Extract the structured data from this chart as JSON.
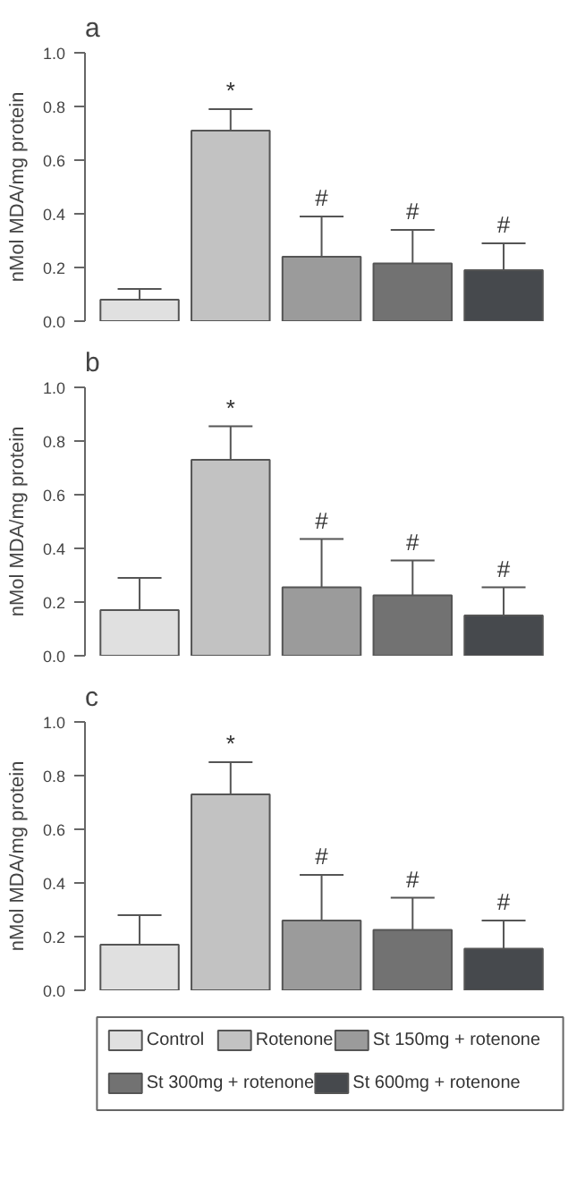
{
  "chart_data": [
    {
      "type": "bar",
      "title": "a",
      "ylabel": "nMol MDA/mg protein",
      "categories": [
        null
      ],
      "ylim": [
        0,
        1.0
      ],
      "yticks": [
        {
          "value": 0,
          "label": "0.0"
        },
        {
          "value": 0.2,
          "label": "0.2"
        },
        {
          "value": 0.4,
          "label": "0.4"
        },
        {
          "value": 0.6,
          "label": "0.6"
        },
        {
          "value": 0.8,
          "label": "0.8"
        },
        {
          "value": 1.0,
          "label": "1.0"
        }
      ],
      "grid": false,
      "legend": false,
      "series": [
        {
          "color": "#e0e0e0",
          "values": [
            0.08
          ],
          "errors": [
            [
              0.08,
              0.12
            ]
          ],
          "value_labels": [
            null
          ]
        },
        {
          "color": "#c2c2c2",
          "values": [
            0.71
          ],
          "errors": [
            [
              0.71,
              0.79
            ]
          ],
          "value_labels": [
            "*"
          ]
        },
        {
          "color": "#9b9b9b",
          "values": [
            0.24
          ],
          "errors": [
            [
              0.24,
              0.39
            ]
          ],
          "value_labels": [
            "#"
          ]
        },
        {
          "color": "#727272",
          "values": [
            0.215
          ],
          "errors": [
            [
              0.215,
              0.34
            ]
          ],
          "value_labels": [
            "#"
          ]
        },
        {
          "color": "#46494d",
          "values": [
            0.19
          ],
          "errors": [
            [
              0.19,
              0.29
            ]
          ],
          "value_labels": [
            "#"
          ]
        }
      ]
    },
    {
      "type": "bar",
      "title": "b",
      "ylabel": "nMol MDA/mg protein",
      "categories": [
        null
      ],
      "ylim": [
        0,
        1.0
      ],
      "yticks": [
        {
          "value": 0,
          "label": "0.0"
        },
        {
          "value": 0.2,
          "label": "0.2"
        },
        {
          "value": 0.4,
          "label": "0.4"
        },
        {
          "value": 0.6,
          "label": "0.6"
        },
        {
          "value": 0.8,
          "label": "0.8"
        },
        {
          "value": 1.0,
          "label": "1.0"
        }
      ],
      "grid": false,
      "legend": false,
      "series": [
        {
          "color": "#e0e0e0",
          "values": [
            0.17
          ],
          "errors": [
            [
              0.17,
              0.29
            ]
          ],
          "value_labels": [
            null
          ]
        },
        {
          "color": "#c2c2c2",
          "values": [
            0.73
          ],
          "errors": [
            [
              0.73,
              0.855
            ]
          ],
          "value_labels": [
            "*"
          ]
        },
        {
          "color": "#9b9b9b",
          "values": [
            0.255
          ],
          "errors": [
            [
              0.255,
              0.435
            ]
          ],
          "value_labels": [
            "#"
          ]
        },
        {
          "color": "#727272",
          "values": [
            0.225
          ],
          "errors": [
            [
              0.225,
              0.355
            ]
          ],
          "value_labels": [
            "#"
          ]
        },
        {
          "color": "#46494d",
          "values": [
            0.15
          ],
          "errors": [
            [
              0.15,
              0.255
            ]
          ],
          "value_labels": [
            "#"
          ]
        }
      ]
    },
    {
      "type": "bar",
      "title": "c",
      "ylabel": "nMol MDA/mg protein",
      "categories": [
        null
      ],
      "ylim": [
        0,
        1.0
      ],
      "yticks": [
        {
          "value": 0,
          "label": "0.0"
        },
        {
          "value": 0.2,
          "label": "0.2"
        },
        {
          "value": 0.4,
          "label": "0.4"
        },
        {
          "value": 0.6,
          "label": "0.6"
        },
        {
          "value": 0.8,
          "label": "0.8"
        },
        {
          "value": 1.0,
          "label": "1.0"
        }
      ],
      "grid": false,
      "legend": "bottom",
      "series": [
        {
          "name": "Control",
          "color": "#e0e0e0",
          "values": [
            0.17
          ],
          "errors": [
            [
              0.17,
              0.28
            ]
          ],
          "value_labels": [
            null
          ]
        },
        {
          "name": "Rotenone",
          "color": "#c2c2c2",
          "values": [
            0.73
          ],
          "errors": [
            [
              0.73,
              0.85
            ]
          ],
          "value_labels": [
            "*"
          ]
        },
        {
          "name": "St 150mg + rotenone",
          "color": "#9b9b9b",
          "values": [
            0.26
          ],
          "errors": [
            [
              0.26,
              0.43
            ]
          ],
          "value_labels": [
            "#"
          ]
        },
        {
          "name": "St 300mg + rotenone",
          "color": "#727272",
          "values": [
            0.225
          ],
          "errors": [
            [
              0.225,
              0.345
            ]
          ],
          "value_labels": [
            "#"
          ]
        },
        {
          "name": "St 600mg + rotenone",
          "color": "#46494d",
          "values": [
            0.155
          ],
          "errors": [
            [
              0.155,
              0.26
            ]
          ],
          "value_labels": [
            "#"
          ]
        }
      ]
    }
  ]
}
